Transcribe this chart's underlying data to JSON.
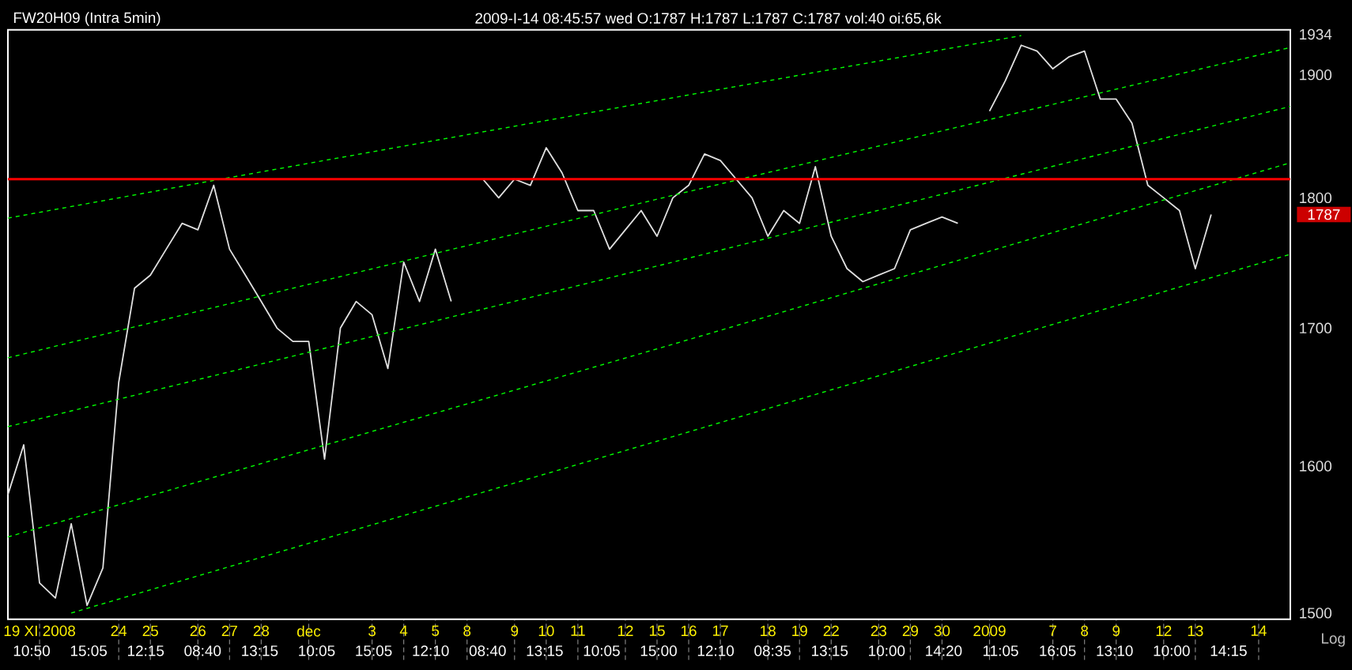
{
  "chart_data": {
    "type": "line",
    "title": "FW20H09 (Intra 5min)",
    "subtitle": "2009-I-14   08:45:57 wed O:1787 H:1787 L:1787 C:1787 vol:40 oi:65,6k",
    "log": true,
    "grid": false,
    "ylim": [
      1496,
      1938
    ],
    "yticks": [
      1500,
      1600,
      1700,
      1800,
      1900,
      1934
    ],
    "categories": [
      null,
      null,
      "19 XI 2008",
      null,
      null,
      null,
      null,
      "24",
      null,
      "25",
      null,
      null,
      "26",
      null,
      "27",
      null,
      "28",
      null,
      null,
      "dec",
      null,
      null,
      null,
      "3",
      null,
      "4",
      null,
      "5",
      null,
      "8",
      null,
      null,
      "9",
      null,
      "10",
      null,
      "11",
      null,
      null,
      "12",
      null,
      "15",
      null,
      "16",
      null,
      "17",
      null,
      null,
      "18",
      null,
      "19",
      null,
      "22",
      null,
      null,
      "23",
      null,
      "29",
      null,
      "30",
      null,
      null,
      "2009",
      null,
      null,
      null,
      "7",
      null,
      "8",
      null,
      "9",
      null,
      null,
      "12",
      null,
      "13",
      null,
      null,
      null,
      "14",
      null,
      null
    ],
    "series": [
      {
        "color": "#e0e0e0",
        "line_style": "solid",
        "values": [
          1580,
          1615,
          1520,
          1510,
          1560,
          1505,
          1530,
          1660,
          1730,
          1740,
          1760,
          1780,
          1775,
          1810,
          1760,
          1740,
          1720,
          1700,
          1690,
          1690,
          1605,
          1700,
          1720,
          1710,
          1670,
          1750,
          1720,
          1760,
          1720,
          null,
          1815,
          1800,
          1815,
          1810,
          1840,
          1820,
          1790,
          1790,
          1760,
          1775,
          1790,
          1770,
          1800,
          1810,
          1835,
          1830,
          1815,
          1800,
          1770,
          1790,
          1780,
          1825,
          1770,
          1745,
          1735,
          1740,
          1745,
          1775,
          1780,
          1785,
          1780,
          null,
          1870,
          1895,
          1925,
          1920,
          1905,
          1915,
          1920,
          1880,
          1880,
          1860,
          1810,
          1800,
          1790,
          1745,
          1787,
          null,
          null,
          null,
          null,
          null
        ]
      },
      {
        "color": "#00ff00",
        "line_style": "dashed",
        "values": [
          1784,
          null,
          null,
          null,
          null,
          null,
          null,
          null,
          null,
          null,
          null,
          null,
          null,
          1814,
          null,
          null,
          null,
          null,
          null,
          null,
          null,
          null,
          null,
          null,
          null,
          null,
          null,
          1846,
          null,
          null,
          null,
          null,
          null,
          null,
          null,
          null,
          null,
          null,
          null,
          null,
          null,
          null,
          1881,
          null,
          null,
          null,
          null,
          null,
          null,
          null,
          null,
          null,
          null,
          null,
          null,
          null,
          null,
          null,
          null,
          null,
          null,
          null,
          null,
          null,
          1933,
          null,
          null,
          null,
          null,
          null,
          null,
          null,
          null,
          null,
          null,
          null,
          null,
          null,
          null,
          null,
          null,
          null
        ]
      },
      {
        "color": "#00ff00",
        "line_style": "dashed",
        "values": [
          1678,
          null,
          null,
          null,
          null,
          null,
          null,
          null,
          null,
          null,
          null,
          null,
          null,
          null,
          null,
          null,
          null,
          null,
          null,
          null,
          null,
          null,
          null,
          null,
          null,
          null,
          null,
          null,
          null,
          null,
          null,
          null,
          null,
          null,
          null,
          null,
          null,
          null,
          null,
          null,
          null,
          null,
          1802,
          null,
          null,
          null,
          null,
          null,
          null,
          null,
          null,
          null,
          null,
          null,
          null,
          null,
          null,
          null,
          null,
          null,
          null,
          null,
          null,
          null,
          null,
          null,
          null,
          null,
          null,
          null,
          null,
          null,
          null,
          null,
          null,
          null,
          null,
          null,
          null,
          null,
          null,
          1923
        ]
      },
      {
        "color": "#00ff00",
        "line_style": "dashed",
        "values": [
          1628,
          null,
          null,
          null,
          null,
          null,
          null,
          null,
          null,
          null,
          null,
          null,
          null,
          null,
          null,
          null,
          null,
          null,
          null,
          null,
          null,
          null,
          null,
          null,
          null,
          null,
          null,
          null,
          null,
          null,
          null,
          null,
          null,
          null,
          null,
          null,
          null,
          null,
          null,
          null,
          null,
          null,
          1750,
          null,
          null,
          null,
          null,
          null,
          null,
          null,
          null,
          null,
          null,
          null,
          null,
          null,
          null,
          null,
          null,
          null,
          null,
          null,
          null,
          null,
          null,
          null,
          null,
          null,
          null,
          null,
          null,
          null,
          null,
          null,
          null,
          null,
          null,
          null,
          null,
          null,
          null,
          1874
        ]
      },
      {
        "color": "#00ff00",
        "line_style": "dashed",
        "values": [
          1551,
          null,
          null,
          null,
          null,
          null,
          null,
          null,
          null,
          null,
          null,
          null,
          null,
          null,
          null,
          null,
          null,
          null,
          null,
          null,
          null,
          null,
          null,
          null,
          null,
          null,
          null,
          null,
          null,
          null,
          null,
          null,
          null,
          null,
          null,
          null,
          null,
          null,
          null,
          null,
          null,
          null,
          1688,
          null,
          null,
          null,
          null,
          null,
          null,
          null,
          null,
          null,
          null,
          null,
          null,
          null,
          null,
          null,
          null,
          null,
          null,
          null,
          null,
          null,
          null,
          null,
          null,
          null,
          null,
          null,
          null,
          null,
          null,
          null,
          null,
          null,
          null,
          null,
          null,
          null,
          null,
          1828
        ]
      },
      {
        "color": "#00ff00",
        "line_style": "dashed",
        "values": [
          null,
          null,
          null,
          null,
          1500,
          null,
          null,
          null,
          null,
          null,
          null,
          null,
          null,
          null,
          null,
          null,
          null,
          null,
          null,
          null,
          null,
          null,
          null,
          null,
          null,
          null,
          null,
          null,
          null,
          null,
          null,
          null,
          null,
          null,
          null,
          null,
          null,
          null,
          null,
          null,
          null,
          null,
          1621,
          null,
          null,
          null,
          null,
          null,
          null,
          null,
          null,
          null,
          null,
          null,
          null,
          null,
          null,
          null,
          null,
          null,
          null,
          null,
          null,
          null,
          null,
          null,
          null,
          null,
          null,
          null,
          null,
          null,
          null,
          null,
          null,
          null,
          null,
          null,
          null,
          null,
          null,
          1756
        ]
      }
    ],
    "ref_lines": [
      {
        "axis": "y",
        "value": 1815,
        "color": "#ff0000"
      }
    ],
    "annotations": [
      "1787",
      "Log",
      "10:50",
      "15:05",
      "12:15",
      "08:40",
      "13:15",
      "10:05",
      "15:05",
      "12:10",
      "08:40",
      "13:15",
      "10:05",
      "15:00",
      "12:10",
      "08:35",
      "13:15",
      "10:00",
      "14:20",
      "11:05",
      "16:05",
      "13:10",
      "10:00",
      "14:15"
    ]
  }
}
